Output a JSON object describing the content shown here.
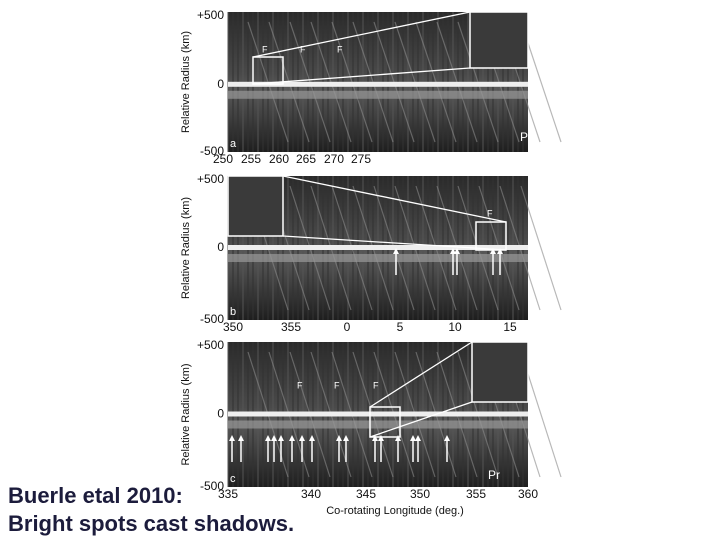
{
  "panels": [
    {
      "label": "a",
      "y_axis_label": "Relative Radius (km)",
      "y_tick_labels": [
        "+500",
        "0",
        "-500"
      ],
      "x_tick_labels": [
        "250",
        "255",
        "260",
        "265",
        "270",
        "275"
      ],
      "annotations": [
        "F",
        "F",
        "F",
        "Pr"
      ]
    },
    {
      "label": "b",
      "y_axis_label": "Relative Radius (km)",
      "y_tick_labels": [
        "+500",
        "0",
        "-500"
      ],
      "x_tick_labels": [
        "350",
        "355",
        "0",
        "5",
        "10",
        "15"
      ],
      "annotations": [
        "F"
      ]
    },
    {
      "label": "c",
      "y_axis_label": "Relative Radius (km)",
      "y_tick_labels": [
        "+500",
        "0",
        "-500"
      ],
      "x_tick_labels": [
        "335",
        "340",
        "345",
        "350",
        "355",
        "360"
      ],
      "annotations": [
        "F",
        "F",
        "F",
        "Pr"
      ]
    }
  ],
  "x_axis_label": "Co-rotating Longitude (deg.)",
  "caption": {
    "lines": [
      "Buerle etal 2010:",
      "Bright spots cast shadows."
    ]
  }
}
